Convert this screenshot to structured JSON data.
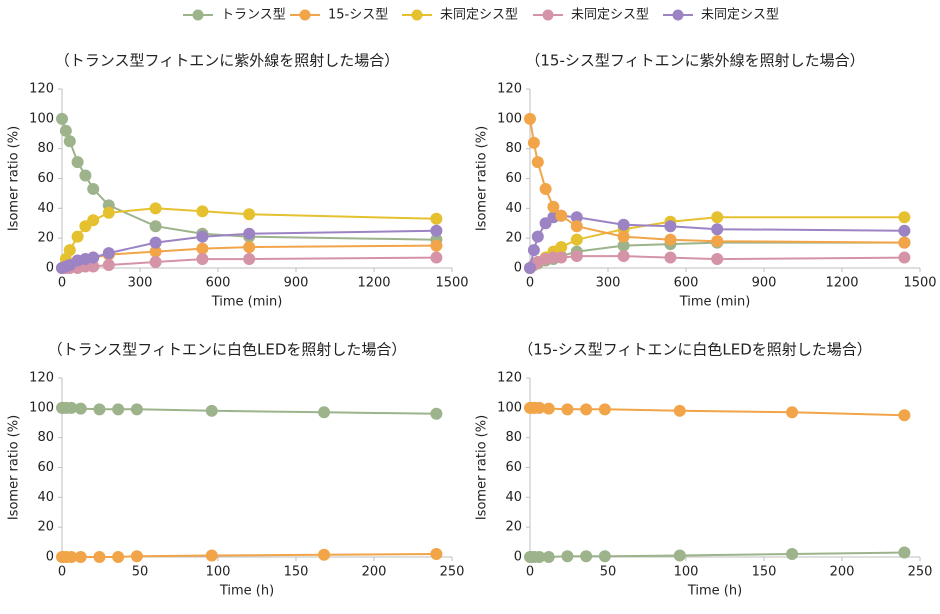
{
  "legend": [
    {
      "name": "トランス型",
      "color": "#9db38c"
    },
    {
      "name": "15-シス型",
      "color": "#f2a449"
    },
    {
      "name": "未同定シス型",
      "color": "#e5c02f"
    },
    {
      "name": "未同定シス型",
      "color": "#d493a7"
    },
    {
      "name": "未同定シス型",
      "color": "#9b83c4"
    }
  ],
  "chart_data": [
    {
      "type": "line",
      "title": "（トランス型フィトエンに紫外線を照射した場合）",
      "x_label": "Time (min)",
      "y_label": "Isomer ratio (%)",
      "x": [
        0,
        15,
        30,
        60,
        90,
        120,
        180,
        360,
        540,
        720,
        1440
      ],
      "xlim": [
        0,
        1500
      ],
      "xticks": [
        0,
        300,
        600,
        900,
        1200,
        1500
      ],
      "ylim": [
        0,
        120
      ],
      "yticks": [
        0,
        20,
        40,
        60,
        80,
        100,
        120
      ],
      "series": [
        {
          "color": "#9db38c",
          "values": [
            100,
            92,
            85,
            71,
            62,
            53,
            42,
            28,
            23,
            21,
            19
          ]
        },
        {
          "color": "#f2a449",
          "values": [
            0,
            1,
            2,
            4,
            5,
            7,
            9,
            11,
            13,
            14,
            15
          ]
        },
        {
          "color": "#e5c02f",
          "values": [
            0,
            6,
            12,
            21,
            28,
            32,
            37,
            40,
            38,
            36,
            33
          ]
        },
        {
          "color": "#d493a7",
          "values": [
            0,
            0,
            0,
            0,
            1,
            1,
            2,
            4,
            6,
            6,
            7
          ]
        },
        {
          "color": "#9b83c4",
          "values": [
            0,
            1,
            2,
            5,
            6,
            7,
            10,
            17,
            21,
            23,
            25
          ]
        }
      ]
    },
    {
      "type": "line",
      "title": "（15-シス型フィトエンに紫外線を照射した場合）",
      "x_label": "Time (min)",
      "y_label": "Isomer ratio (%)",
      "x": [
        0,
        15,
        30,
        60,
        90,
        120,
        180,
        360,
        540,
        720,
        1440
      ],
      "xlim": [
        0,
        1500
      ],
      "xticks": [
        0,
        300,
        600,
        900,
        1200,
        1500
      ],
      "ylim": [
        0,
        120
      ],
      "yticks": [
        0,
        20,
        40,
        60,
        80,
        100,
        120
      ],
      "series": [
        {
          "color": "#9db38c",
          "values": [
            0,
            2,
            3,
            5,
            6,
            8,
            11,
            15,
            16,
            17,
            17
          ]
        },
        {
          "color": "#e5c02f",
          "values": [
            0,
            2,
            4,
            7,
            11,
            14,
            19,
            26,
            31,
            34,
            34
          ]
        },
        {
          "color": "#d493a7",
          "values": [
            0,
            2,
            4,
            6,
            7,
            7,
            8,
            8,
            7,
            6,
            7
          ]
        },
        {
          "color": "#9b83c4",
          "values": [
            0,
            12,
            21,
            30,
            34,
            35,
            34,
            29,
            28,
            26,
            25
          ]
        },
        {
          "color": "#f2a449",
          "values": [
            100,
            84,
            71,
            53,
            41,
            35,
            28,
            21,
            19,
            18,
            17
          ]
        }
      ]
    },
    {
      "type": "line",
      "title": "（トランス型フィトエンに白色LEDを照射した場合）",
      "x_label": "Time (h)",
      "y_label": "Isomer ratio (%)",
      "x": [
        0,
        1,
        3,
        6,
        12,
        24,
        36,
        48,
        96,
        168,
        240
      ],
      "xlim": [
        0,
        250
      ],
      "xticks": [
        0,
        50,
        100,
        150,
        200,
        250
      ],
      "ylim": [
        0,
        120
      ],
      "yticks": [
        0,
        20,
        40,
        60,
        80,
        100,
        120
      ],
      "series": [
        {
          "color": "#9db38c",
          "values": [
            100,
            100,
            100,
            100,
            99.5,
            99,
            99,
            99,
            98,
            97,
            96
          ]
        },
        {
          "color": "#f2a449",
          "values": [
            0,
            0,
            0,
            0,
            0,
            0,
            0,
            0.5,
            1,
            1.5,
            2
          ]
        }
      ]
    },
    {
      "type": "line",
      "title": "（15-シス型フィトエンに白色LEDを照射した場合）",
      "x_label": "Time (h)",
      "y_label": "Isomer ratio (%)",
      "x": [
        0,
        1,
        3,
        6,
        12,
        24,
        36,
        48,
        96,
        168,
        240
      ],
      "xlim": [
        0,
        250
      ],
      "xticks": [
        0,
        50,
        100,
        150,
        200,
        250
      ],
      "ylim": [
        0,
        120
      ],
      "yticks": [
        0,
        20,
        40,
        60,
        80,
        100,
        120
      ],
      "series": [
        {
          "color": "#f2a449",
          "values": [
            100,
            100,
            100,
            100,
            99.5,
            99,
            99,
            99,
            98,
            97,
            95
          ]
        },
        {
          "color": "#9db38c",
          "values": [
            0,
            0,
            0,
            0,
            0,
            0.5,
            0.5,
            0.5,
            1,
            2,
            3
          ]
        }
      ]
    }
  ]
}
